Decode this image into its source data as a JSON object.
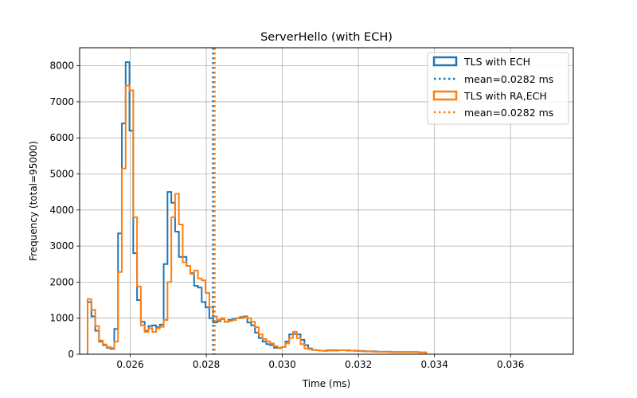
{
  "chart_data": {
    "type": "histogram",
    "title": "ServerHello (with ECH)",
    "xlabel": "Time (ms)",
    "ylabel": "Frequency (total=95000)",
    "xlim": [
      0.02467,
      0.03765
    ],
    "ylim": [
      0,
      8500
    ],
    "xticks": [
      0.026,
      0.028,
      0.03,
      0.032,
      0.034,
      0.036
    ],
    "xtick_labels": [
      "0.026",
      "0.028",
      "0.030",
      "0.032",
      "0.034",
      "0.036"
    ],
    "yticks": [
      0,
      1000,
      2000,
      3000,
      4000,
      5000,
      6000,
      7000,
      8000
    ],
    "ytick_labels": [
      "0",
      "1000",
      "2000",
      "3000",
      "4000",
      "5000",
      "6000",
      "7000",
      "8000"
    ],
    "grid": true,
    "legend_position": "top-right",
    "bin_start": 0.02488,
    "bin_width": 0.0001,
    "series": [
      {
        "name": "TLS with ECH",
        "style": "step",
        "color": "#1f77b4",
        "values": [
          1450,
          1050,
          650,
          350,
          250,
          180,
          150,
          700,
          3350,
          6400,
          8100,
          6200,
          2800,
          1500,
          900,
          650,
          780,
          800,
          750,
          820,
          2500,
          4500,
          4200,
          3400,
          2700,
          2700,
          2450,
          2250,
          1900,
          1850,
          1450,
          1300,
          1000,
          880,
          920,
          980,
          900,
          950,
          980,
          1000,
          1030,
          1050,
          880,
          800,
          600,
          450,
          350,
          280,
          250,
          180,
          170,
          200,
          350,
          550,
          560,
          550,
          400,
          250,
          160,
          120,
          110,
          100,
          100,
          110,
          110,
          110,
          110,
          110,
          110,
          100,
          100,
          90,
          90,
          80,
          80,
          80,
          70,
          70,
          70,
          70,
          60,
          60,
          60,
          60,
          60,
          60,
          60,
          50,
          50
        ],
        "mean": 0.0282,
        "mean_label": "mean=0.0282 ms"
      },
      {
        "name": "TLS with RA,ECH",
        "style": "step",
        "color": "#ff7f0e",
        "values": [
          1530,
          1230,
          780,
          380,
          270,
          200,
          170,
          350,
          2280,
          5150,
          7450,
          7320,
          3800,
          1880,
          800,
          620,
          720,
          620,
          720,
          760,
          950,
          2000,
          3800,
          4450,
          3600,
          2550,
          2450,
          2230,
          2320,
          2100,
          2050,
          1700,
          1300,
          1050,
          950,
          1000,
          900,
          920,
          950,
          1000,
          1000,
          1030,
          1000,
          900,
          750,
          550,
          420,
          360,
          300,
          220,
          180,
          200,
          300,
          450,
          620,
          450,
          280,
          160,
          140,
          120,
          110,
          100,
          90,
          100,
          100,
          100,
          110,
          110,
          100,
          100,
          90,
          90,
          80,
          80,
          80,
          70,
          70,
          70,
          70,
          60,
          60,
          60,
          60,
          60,
          60,
          60,
          60,
          50,
          50
        ],
        "mean": 0.0282,
        "mean_label": "mean=0.0282 ms"
      }
    ]
  }
}
